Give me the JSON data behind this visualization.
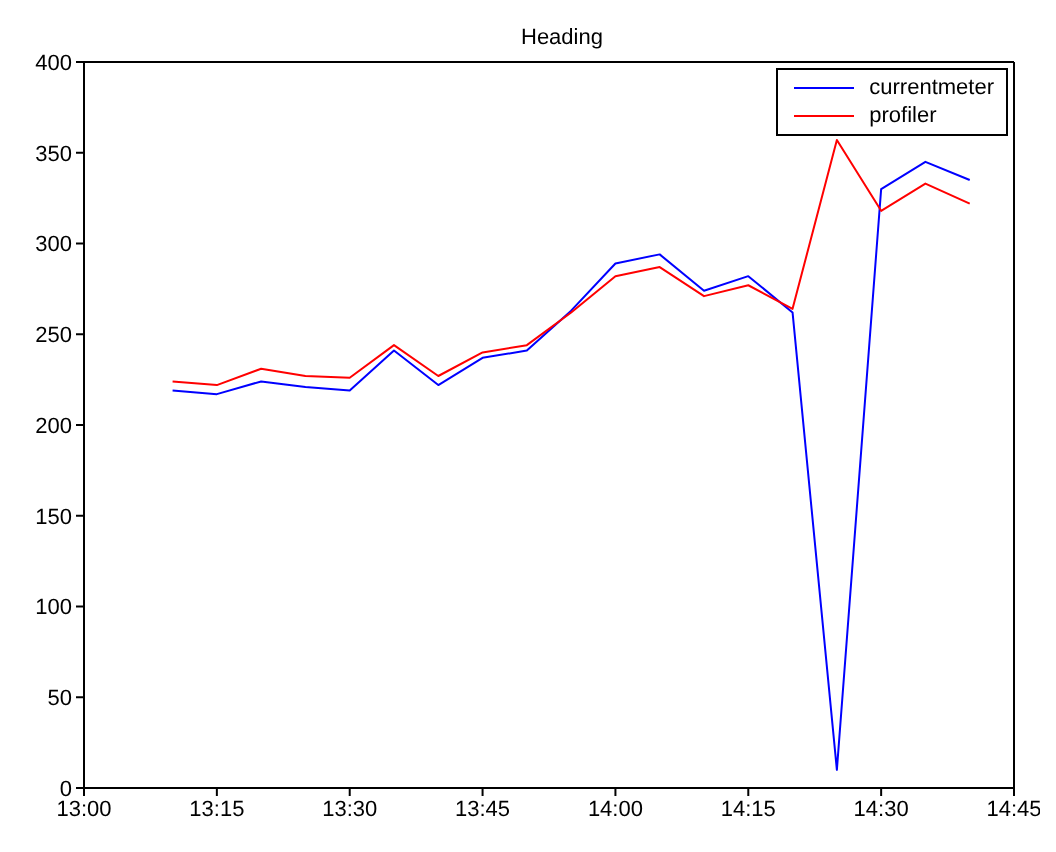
{
  "chart_data": {
    "type": "line",
    "title": "Heading",
    "x": [
      13.1667,
      13.25,
      13.3333,
      13.4167,
      13.5,
      13.5833,
      13.6667,
      13.75,
      13.8333,
      13.9167,
      14,
      14.0833,
      14.1667,
      14.25,
      14.3333,
      14.4167,
      14.5,
      14.5833,
      14.6667
    ],
    "series": [
      {
        "name": "currentmeter",
        "color": "#0000ff",
        "values": [
          219,
          217,
          224,
          221,
          219,
          241,
          222,
          237,
          241,
          263,
          289,
          294,
          274,
          282,
          262,
          10,
          330,
          345,
          335
        ]
      },
      {
        "name": "profiler",
        "color": "#ff0000",
        "values": [
          224,
          222,
          231,
          227,
          226,
          244,
          227,
          240,
          244,
          262,
          282,
          287,
          271,
          277,
          264,
          357,
          318,
          333,
          322
        ]
      }
    ],
    "xlim": [
      13,
      14.75
    ],
    "xticks": [
      {
        "value": 13,
        "label": "13:00"
      },
      {
        "value": 13.25,
        "label": "13:15"
      },
      {
        "value": 13.5,
        "label": "13:30"
      },
      {
        "value": 13.75,
        "label": "13:45"
      },
      {
        "value": 14,
        "label": "14:00"
      },
      {
        "value": 14.25,
        "label": "14:15"
      },
      {
        "value": 14.5,
        "label": "14:30"
      },
      {
        "value": 14.75,
        "label": "14:45"
      }
    ],
    "ylim": [
      0,
      400
    ],
    "yticks": [
      0,
      50,
      100,
      150,
      200,
      250,
      300,
      350,
      400
    ],
    "legend": "top right",
    "marker": "none",
    "line_style": "solid"
  }
}
